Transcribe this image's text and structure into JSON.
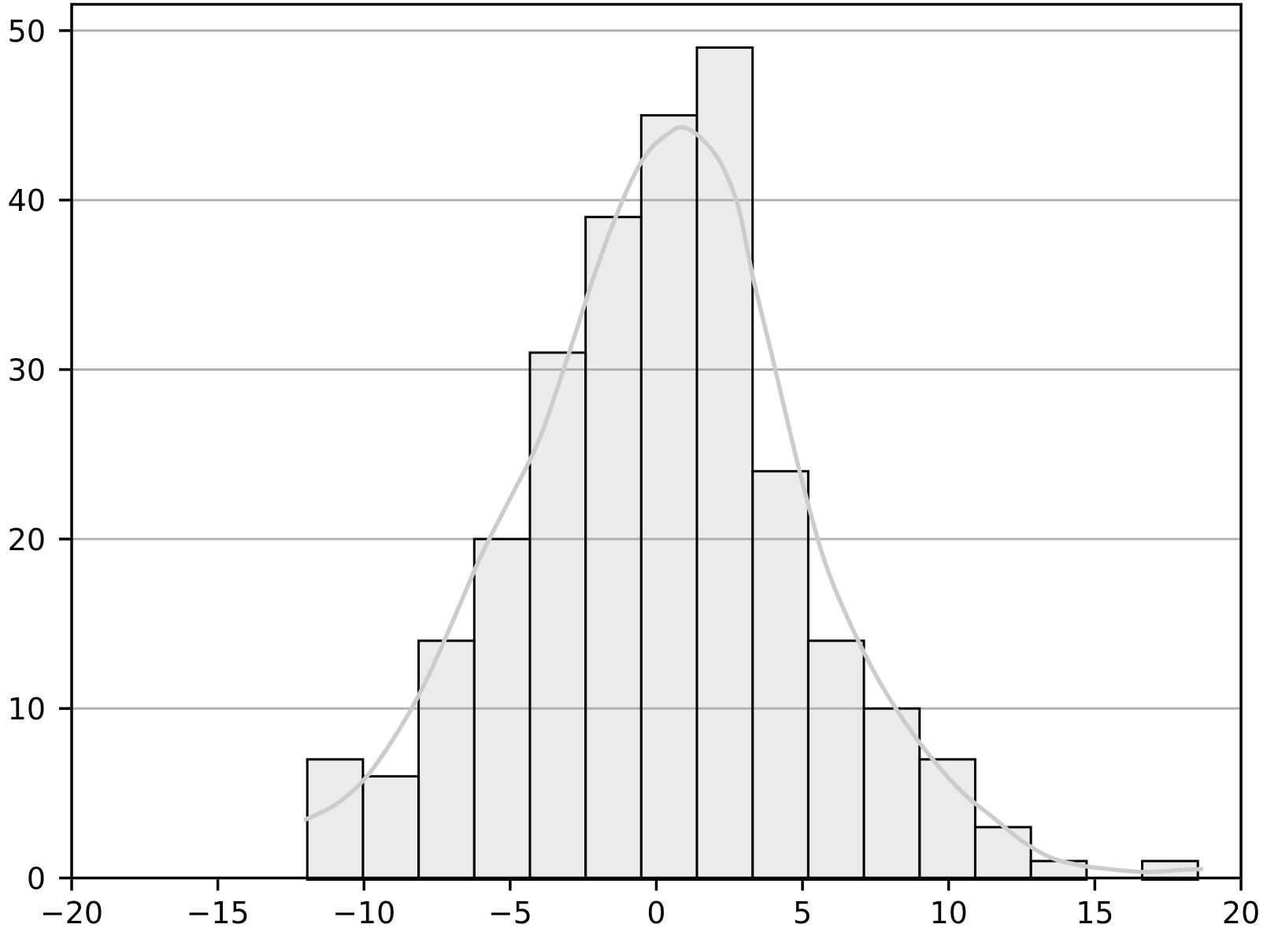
{
  "chart_data": {
    "type": "histogram",
    "title": "",
    "xlabel": "",
    "ylabel": "",
    "legend": null,
    "grid": "horizontal",
    "xlim": [
      -20,
      20
    ],
    "ylim": [
      0,
      51.55
    ],
    "x_ticks": [
      -20,
      -15,
      -10,
      -5,
      0,
      5,
      10,
      15,
      20
    ],
    "x_tick_labels": [
      "−20",
      "−15",
      "−10",
      "−5",
      "0",
      "5",
      "10",
      "15",
      "20"
    ],
    "y_ticks": [
      0,
      10,
      20,
      30,
      40,
      50
    ],
    "y_tick_labels": [
      "0",
      "10",
      "20",
      "30",
      "40",
      "50"
    ],
    "bins": {
      "start": -11.94,
      "width": 1.904,
      "counts": [
        7,
        6,
        14,
        20,
        31,
        39,
        45,
        49,
        24,
        14,
        10,
        7,
        3,
        1,
        0,
        1
      ]
    },
    "kde_curve": {
      "points": [
        [
          -12.0,
          3.45
        ],
        [
          -11.0,
          4.3
        ],
        [
          -10.0,
          5.8
        ],
        [
          -9.0,
          8.2
        ],
        [
          -8.0,
          11.2
        ],
        [
          -7.0,
          15.0
        ],
        [
          -6.0,
          19.0
        ],
        [
          -5.0,
          22.4
        ],
        [
          -4.0,
          25.9
        ],
        [
          -3.0,
          30.9
        ],
        [
          -2.0,
          36.2
        ],
        [
          -1.0,
          40.6
        ],
        [
          -0.3,
          42.8
        ],
        [
          0.4,
          43.9
        ],
        [
          0.9,
          44.3
        ],
        [
          1.5,
          43.7
        ],
        [
          2.2,
          42.2
        ],
        [
          2.8,
          39.6
        ],
        [
          3.3,
          35.5
        ],
        [
          4.0,
          30.5
        ],
        [
          4.9,
          24.0
        ],
        [
          5.7,
          19.0
        ],
        [
          6.5,
          15.5
        ],
        [
          7.5,
          12.0
        ],
        [
          8.5,
          9.2
        ],
        [
          9.5,
          6.9
        ],
        [
          10.5,
          5.0
        ],
        [
          11.5,
          3.6
        ],
        [
          12.5,
          2.2
        ],
        [
          13.5,
          1.2
        ],
        [
          14.5,
          0.75
        ],
        [
          15.5,
          0.52
        ],
        [
          16.6,
          0.36
        ],
        [
          17.4,
          0.4
        ],
        [
          18.1,
          0.49
        ],
        [
          18.65,
          0.52
        ]
      ]
    },
    "colors": {
      "background": "#ffffff",
      "bar_fill": "#ebebeb",
      "bar_edge": "#000000",
      "kde_line": "#cccccc",
      "grid_line": "#b1b1b1",
      "spine": "#000000",
      "tick": "#000000",
      "tick_label": "#000000"
    }
  }
}
